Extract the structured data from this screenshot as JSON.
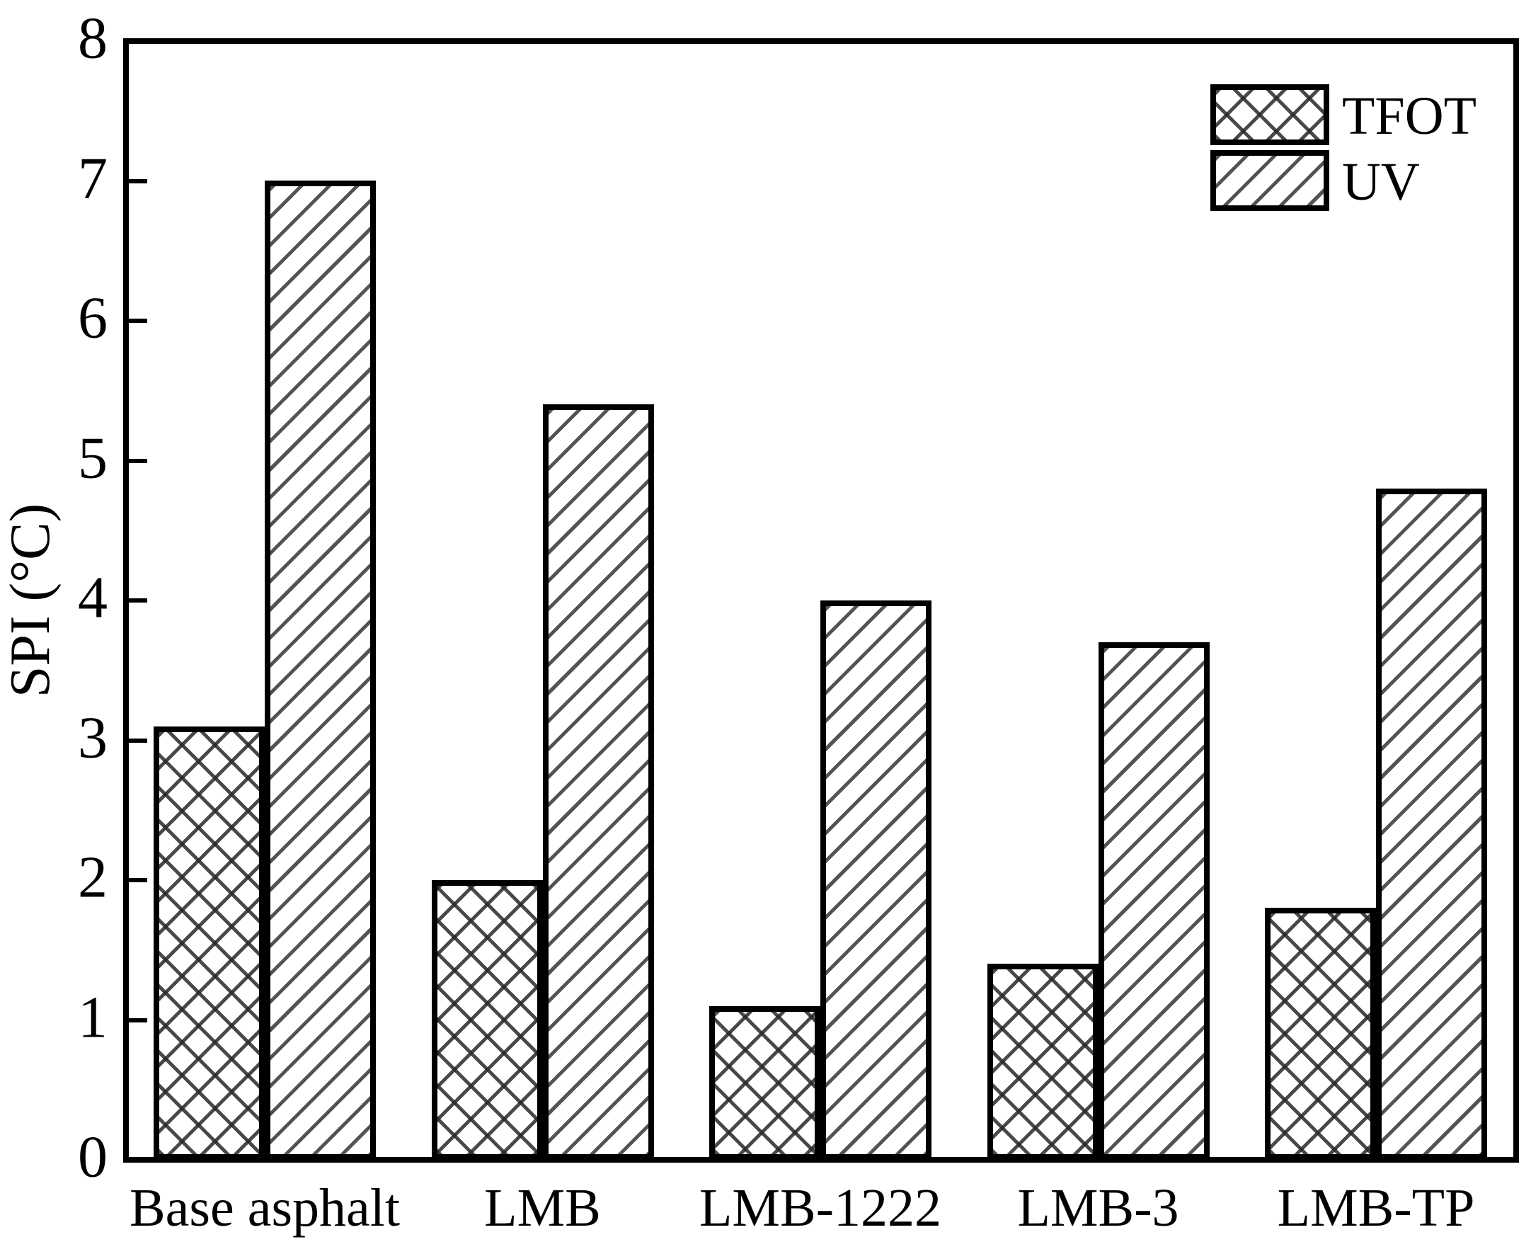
{
  "chart_data": {
    "type": "bar",
    "title": "",
    "categories": [
      "Base asphalt",
      "LMB",
      "LMB-1222",
      "LMB-3",
      "LMB-TP"
    ],
    "series": [
      {
        "name": "TFOT",
        "hatch": "crosshatch",
        "values": [
          3.1,
          2.0,
          1.1,
          1.4,
          1.8
        ]
      },
      {
        "name": "UV",
        "hatch": "diagonal",
        "values": [
          7.0,
          5.4,
          4.0,
          3.7,
          4.8
        ]
      }
    ],
    "xlabel": "",
    "ylabel": "SPI (°C)",
    "ylim": [
      0,
      8
    ],
    "yticks": [
      0,
      1,
      2,
      3,
      4,
      5,
      6,
      7,
      8
    ],
    "grid": false,
    "legend_position": "top-right",
    "colors": {
      "foreground": "#000000",
      "background": "#ffffff"
    }
  }
}
